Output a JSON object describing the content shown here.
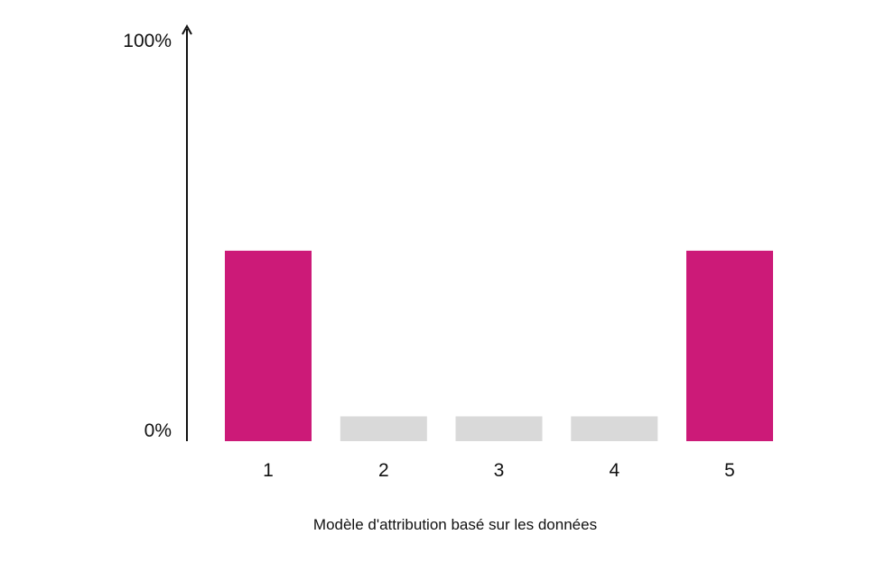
{
  "chart_data": {
    "type": "bar",
    "title": "",
    "xlabel": "Modèle d'attribution basé sur les données",
    "ylabel": "",
    "y_ticks": [
      "100%",
      "0%"
    ],
    "ylim": [
      0,
      100
    ],
    "categories": [
      "1",
      "2",
      "3",
      "4",
      "5"
    ],
    "values": [
      46,
      6,
      6,
      6,
      46
    ],
    "bar_colors": [
      "#cc1a78",
      "#d9d9d9",
      "#d9d9d9",
      "#d9d9d9",
      "#cc1a78"
    ],
    "axis_color": "#111111",
    "grid": false,
    "legend": "none"
  }
}
